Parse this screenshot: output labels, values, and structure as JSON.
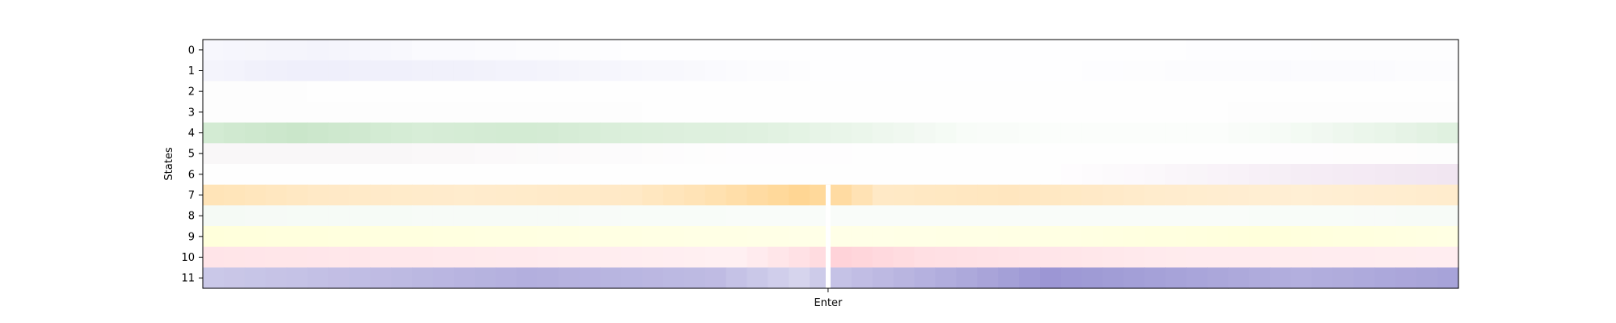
{
  "chart_data": {
    "type": "heatmap",
    "ylabel": "States",
    "xlabel": "",
    "y_tick_labels": [
      "0",
      "1",
      "2",
      "3",
      "4",
      "5",
      "6",
      "7",
      "8",
      "9",
      "10",
      "11"
    ],
    "x_tick_labels": [
      {
        "label": "Enter",
        "position_fraction": 0.498
      }
    ],
    "divider_fraction": 0.498,
    "columns": 60,
    "rows": [
      {
        "state": "0",
        "color": "#c8c8f0",
        "profile": [
          [
            0,
            0.15
          ],
          [
            5,
            0.2
          ],
          [
            10,
            0.1
          ],
          [
            20,
            0.02
          ],
          [
            40,
            0.02
          ],
          [
            59,
            0.04
          ]
        ]
      },
      {
        "state": "1",
        "color": "#c8c8f0",
        "profile": [
          [
            0,
            0.2
          ],
          [
            4,
            0.3
          ],
          [
            12,
            0.25
          ],
          [
            22,
            0.12
          ],
          [
            29,
            0.02
          ],
          [
            40,
            0.02
          ],
          [
            54,
            0.08
          ],
          [
            59,
            0.05
          ]
        ]
      },
      {
        "state": "2",
        "color": "#d8d8d8",
        "profile": [
          [
            0,
            0.04
          ],
          [
            59,
            0.02
          ]
        ]
      },
      {
        "state": "3",
        "color": "#d8d8d8",
        "profile": [
          [
            0,
            0.06
          ],
          [
            15,
            0.05
          ],
          [
            30,
            0.02
          ],
          [
            50,
            0.04
          ],
          [
            59,
            0.04
          ]
        ]
      },
      {
        "state": "4",
        "color": "#a6d6a6",
        "profile": [
          [
            0,
            0.5
          ],
          [
            4,
            0.6
          ],
          [
            10,
            0.45
          ],
          [
            15,
            0.5
          ],
          [
            20,
            0.4
          ],
          [
            26,
            0.35
          ],
          [
            30,
            0.25
          ],
          [
            36,
            0.08
          ],
          [
            40,
            0.05
          ],
          [
            48,
            0.05
          ],
          [
            51,
            0.1
          ],
          [
            56,
            0.25
          ],
          [
            59,
            0.35
          ]
        ]
      },
      {
        "state": "5",
        "color": "#d8c8d0",
        "profile": [
          [
            0,
            0.15
          ],
          [
            8,
            0.15
          ],
          [
            15,
            0.1
          ],
          [
            25,
            0.03
          ],
          [
            45,
            0.02
          ],
          [
            59,
            0.04
          ]
        ]
      },
      {
        "state": "6",
        "color": "#d8b8d8",
        "profile": [
          [
            0,
            0.02
          ],
          [
            40,
            0.02
          ],
          [
            45,
            0.1
          ],
          [
            52,
            0.25
          ],
          [
            59,
            0.35
          ]
        ]
      },
      {
        "state": "7",
        "color": "#ffc870",
        "profile": [
          [
            0,
            0.5
          ],
          [
            5,
            0.4
          ],
          [
            12,
            0.35
          ],
          [
            20,
            0.4
          ],
          [
            24,
            0.55
          ],
          [
            28,
            0.75
          ],
          [
            30,
            0.65
          ],
          [
            32,
            0.4
          ],
          [
            38,
            0.45
          ],
          [
            45,
            0.35
          ],
          [
            52,
            0.3
          ],
          [
            59,
            0.35
          ]
        ]
      },
      {
        "state": "8",
        "color": "#d8ecd8",
        "profile": [
          [
            0,
            0.25
          ],
          [
            15,
            0.2
          ],
          [
            30,
            0.15
          ],
          [
            45,
            0.15
          ],
          [
            59,
            0.2
          ]
        ]
      },
      {
        "state": "9",
        "color": "#ffffb0",
        "profile": [
          [
            0,
            0.45
          ],
          [
            10,
            0.4
          ],
          [
            20,
            0.35
          ],
          [
            30,
            0.3
          ],
          [
            40,
            0.35
          ],
          [
            50,
            0.45
          ],
          [
            55,
            0.4
          ],
          [
            59,
            0.35
          ]
        ]
      },
      {
        "state": "10",
        "color": "#ffc4cc",
        "profile": [
          [
            0,
            0.45
          ],
          [
            15,
            0.35
          ],
          [
            25,
            0.25
          ],
          [
            29,
            0.6
          ],
          [
            30,
            0.75
          ],
          [
            34,
            0.55
          ],
          [
            45,
            0.35
          ],
          [
            59,
            0.3
          ]
        ]
      },
      {
        "state": "11",
        "color": "#8a84cc",
        "profile": [
          [
            0,
            0.45
          ],
          [
            8,
            0.55
          ],
          [
            15,
            0.65
          ],
          [
            24,
            0.55
          ],
          [
            28,
            0.35
          ],
          [
            30,
            0.5
          ],
          [
            36,
            0.7
          ],
          [
            40,
            0.85
          ],
          [
            46,
            0.75
          ],
          [
            52,
            0.65
          ],
          [
            59,
            0.75
          ]
        ]
      }
    ]
  }
}
